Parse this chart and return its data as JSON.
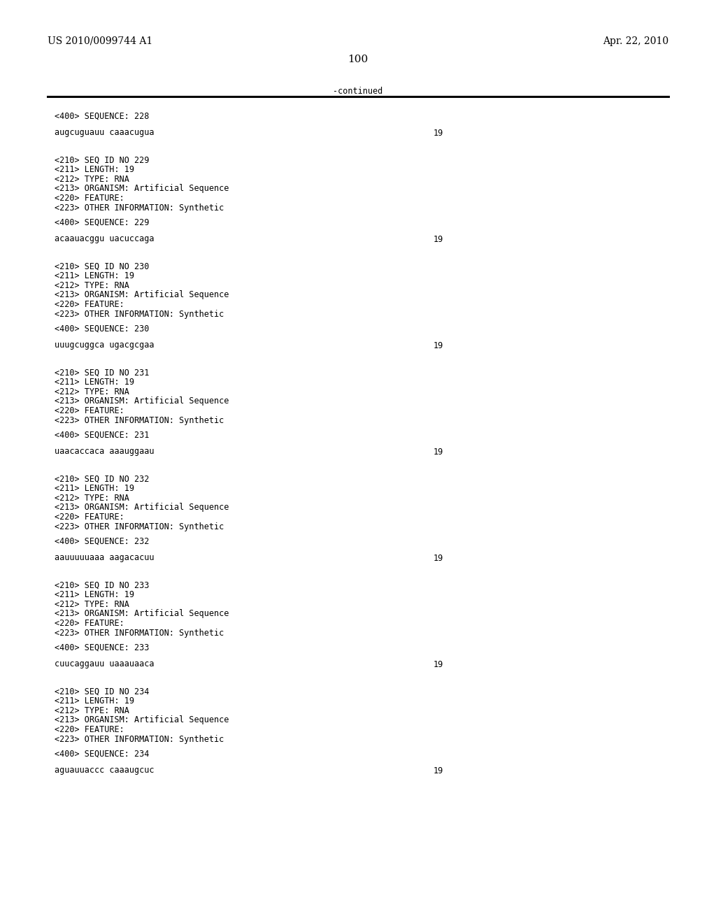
{
  "header_left": "US 2010/0099744 A1",
  "header_right": "Apr. 22, 2010",
  "page_number": "100",
  "continued_text": "-continued",
  "background_color": "#ffffff",
  "text_color": "#000000",
  "font_size_header": 10.0,
  "font_size_body": 8.5,
  "font_size_page": 11.0,
  "blocks": [
    {
      "type": "seq400",
      "label": "<400> SEQUENCE: 228"
    },
    {
      "type": "sequence",
      "seq": "augcuguauu caaacugua",
      "length": "19"
    },
    {
      "type": "seq210_block",
      "lines": [
        "<210> SEQ ID NO 229",
        "<211> LENGTH: 19",
        "<212> TYPE: RNA",
        "<213> ORGANISM: Artificial Sequence",
        "<220> FEATURE:",
        "<223> OTHER INFORMATION: Synthetic"
      ]
    },
    {
      "type": "seq400",
      "label": "<400> SEQUENCE: 229"
    },
    {
      "type": "sequence",
      "seq": "acaauacggu uacuccaga",
      "length": "19"
    },
    {
      "type": "seq210_block",
      "lines": [
        "<210> SEQ ID NO 230",
        "<211> LENGTH: 19",
        "<212> TYPE: RNA",
        "<213> ORGANISM: Artificial Sequence",
        "<220> FEATURE:",
        "<223> OTHER INFORMATION: Synthetic"
      ]
    },
    {
      "type": "seq400",
      "label": "<400> SEQUENCE: 230"
    },
    {
      "type": "sequence",
      "seq": "uuugcuggca ugacgcgaa",
      "length": "19"
    },
    {
      "type": "seq210_block",
      "lines": [
        "<210> SEQ ID NO 231",
        "<211> LENGTH: 19",
        "<212> TYPE: RNA",
        "<213> ORGANISM: Artificial Sequence",
        "<220> FEATURE:",
        "<223> OTHER INFORMATION: Synthetic"
      ]
    },
    {
      "type": "seq400",
      "label": "<400> SEQUENCE: 231"
    },
    {
      "type": "sequence",
      "seq": "uaacaccaca aaauggaau",
      "length": "19"
    },
    {
      "type": "seq210_block",
      "lines": [
        "<210> SEQ ID NO 232",
        "<211> LENGTH: 19",
        "<212> TYPE: RNA",
        "<213> ORGANISM: Artificial Sequence",
        "<220> FEATURE:",
        "<223> OTHER INFORMATION: Synthetic"
      ]
    },
    {
      "type": "seq400",
      "label": "<400> SEQUENCE: 232"
    },
    {
      "type": "sequence",
      "seq": "aauuuuuaaa aagacacuu",
      "length": "19"
    },
    {
      "type": "seq210_block",
      "lines": [
        "<210> SEQ ID NO 233",
        "<211> LENGTH: 19",
        "<212> TYPE: RNA",
        "<213> ORGANISM: Artificial Sequence",
        "<220> FEATURE:",
        "<223> OTHER INFORMATION: Synthetic"
      ]
    },
    {
      "type": "seq400",
      "label": "<400> SEQUENCE: 233"
    },
    {
      "type": "sequence",
      "seq": "cuucaggauu uaaauaaca",
      "length": "19"
    },
    {
      "type": "seq210_block",
      "lines": [
        "<210> SEQ ID NO 234",
        "<211> LENGTH: 19",
        "<212> TYPE: RNA",
        "<213> ORGANISM: Artificial Sequence",
        "<220> FEATURE:",
        "<223> OTHER INFORMATION: Synthetic"
      ]
    },
    {
      "type": "seq400",
      "label": "<400> SEQUENCE: 234"
    },
    {
      "type": "sequence",
      "seq": "aguauuaccc caaaugcuc",
      "length": "19"
    }
  ]
}
